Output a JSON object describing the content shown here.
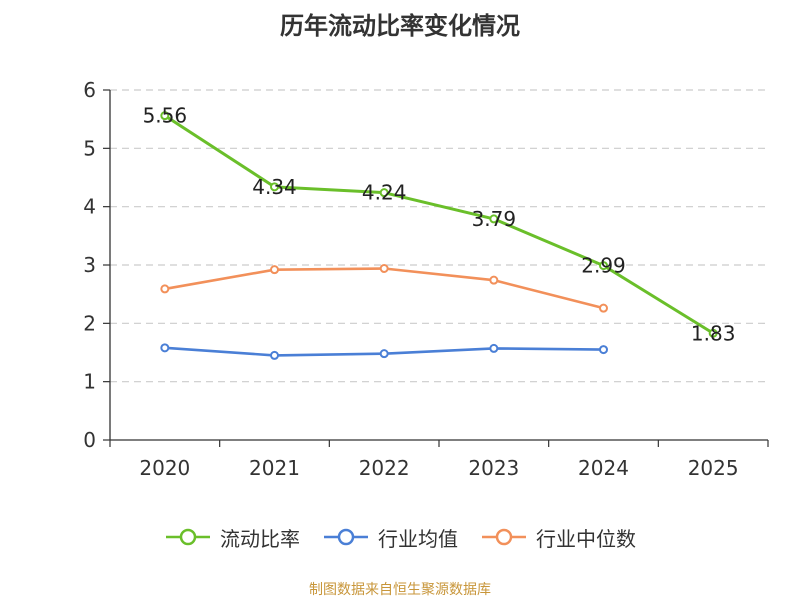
{
  "chart_data": {
    "type": "line",
    "title": "历年流动比率变化情况",
    "categories": [
      "2020",
      "2021",
      "2022",
      "2023",
      "2024",
      "2025"
    ],
    "ylim": [
      0,
      6
    ],
    "yticks": [
      "0",
      "1",
      "2",
      "3",
      "4",
      "5",
      "6"
    ],
    "grid": true,
    "legend_position": "bottom",
    "series": [
      {
        "name": "流动比率",
        "color": "#6abf2a",
        "values": [
          5.56,
          4.34,
          4.24,
          3.79,
          2.99,
          1.83
        ],
        "labels": [
          "5.56",
          "4.34",
          "4.24",
          "3.79",
          "2.99",
          "1.83"
        ]
      },
      {
        "name": "行业均值",
        "color": "#4a7fd6",
        "values": [
          1.58,
          1.45,
          1.48,
          1.57,
          1.55,
          null
        ]
      },
      {
        "name": "行业中位数",
        "color": "#f2905a",
        "values": [
          2.59,
          2.92,
          2.94,
          2.74,
          2.26,
          null
        ]
      }
    ]
  },
  "source": "制图数据来自恒生聚源数据库"
}
